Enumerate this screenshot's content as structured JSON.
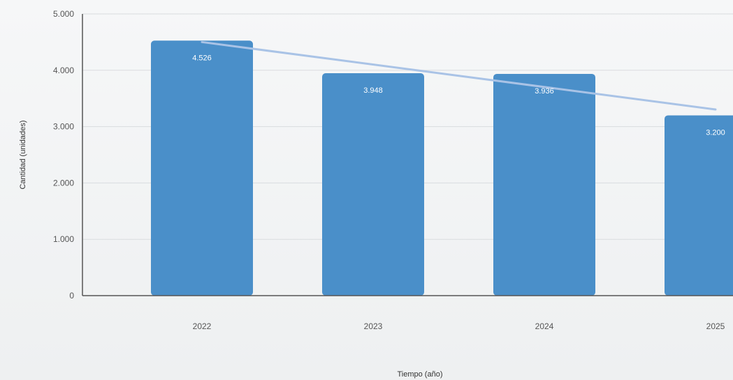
{
  "chart_data": {
    "type": "bar",
    "categories": [
      "2022",
      "2023",
      "2024",
      "2025"
    ],
    "series": [
      {
        "values": [
          4526,
          3948,
          3936,
          3200
        ],
        "value_labels": [
          "4.526",
          "3.948",
          "3.936",
          "3.200"
        ]
      }
    ],
    "trendline": {
      "type": "linear",
      "style": "line",
      "color": "#a9c3e6"
    },
    "title": "",
    "xlabel": "Tiempo (año)",
    "ylabel": "Cantidad (unidades)",
    "ylim": [
      0,
      5000
    ],
    "y_ticks": [
      0,
      1000,
      2000,
      3000,
      4000,
      5000
    ],
    "y_tick_labels": [
      "0",
      "1.000",
      "2.000",
      "3.000",
      "4.000",
      "5.000"
    ],
    "grid": true,
    "legend": "none",
    "colors": {
      "bar": "#4a8fc9",
      "grid": "#d9dcdf",
      "axis": "#555555",
      "value_label": "#ffffff"
    }
  }
}
